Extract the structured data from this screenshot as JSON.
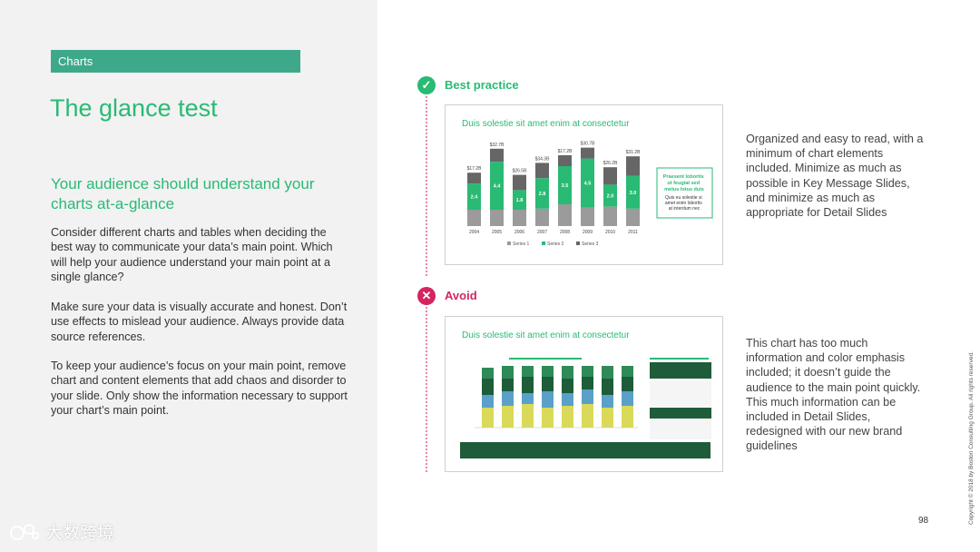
{
  "section_tag": "Charts",
  "title": "The glance test",
  "subtitle": "Your audience should understand your charts at-a-glance",
  "body": [
    "Consider different charts and tables when deciding the best way to communicate your data’s main point. Which will help your audience understand your main point at a single glance?",
    "Make sure your data is visually accurate and honest. Don’t use effects to mislead your audience. Always provide data source references.",
    "To keep your audience’s focus on your main point, remove chart and content elements that add chaos and disorder to your slide. Only show the information necessary to support your chart’s main point."
  ],
  "best_practice": {
    "label": "Best practice",
    "icon": "check-icon",
    "color": "#29ba74",
    "description": "Organized and easy to read, with a minimum of chart elements included. Minimize as much as possible in Key Message Slides, and minimize as much as appropriate for Detail Slides",
    "thumbnail": {
      "title": "Duis solestie sit amet enim at consectetur",
      "callout_title": "Praesent lobortis ut feugiat sed metus lotus duis",
      "callout_body": "Quis eu solestie si amet enim lobortis at interdum nec",
      "legend": [
        "Series 1",
        "Series 2",
        "Series 3"
      ]
    },
    "chart_data": {
      "type": "bar",
      "categories": [
        "2004",
        "2005",
        "2006",
        "2007",
        "2008",
        "2009",
        "2010",
        "2011"
      ],
      "totals": [
        "$17.2B",
        "$32.7B",
        "$26.5B",
        "$34.3B",
        "$17.2B",
        "$30.7B",
        "$26.2B",
        "$31.2B"
      ],
      "series": [
        {
          "name": "Series 1",
          "values": [
            1.5,
            1.5,
            1.5,
            1.6,
            2.0,
            1.7,
            1.8,
            1.6
          ]
        },
        {
          "name": "Series 2",
          "values": [
            2.4,
            4.4,
            1.8,
            2.8,
            3.5,
            4.5,
            2.0,
            3.0
          ]
        },
        {
          "name": "Series 3",
          "values": [
            1.0,
            1.2,
            1.4,
            1.4,
            1.0,
            1.0,
            1.6,
            1.8
          ]
        }
      ]
    }
  },
  "avoid": {
    "label": "Avoid",
    "icon": "x-icon",
    "color": "#d4255f",
    "description": "This chart has too much information and color emphasis included; it doesn’t guide the audience to the main point quickly. This much information can be included in Detail Slides, redesigned with our new brand guidelines",
    "thumbnail": {
      "title": "Duis solestie sit amet enim at consectetur"
    }
  },
  "page_number": "98",
  "copyright": "Copyright © 2018 by Boston Consulting Group. All rights reserved.",
  "watermark": "大数跨境"
}
